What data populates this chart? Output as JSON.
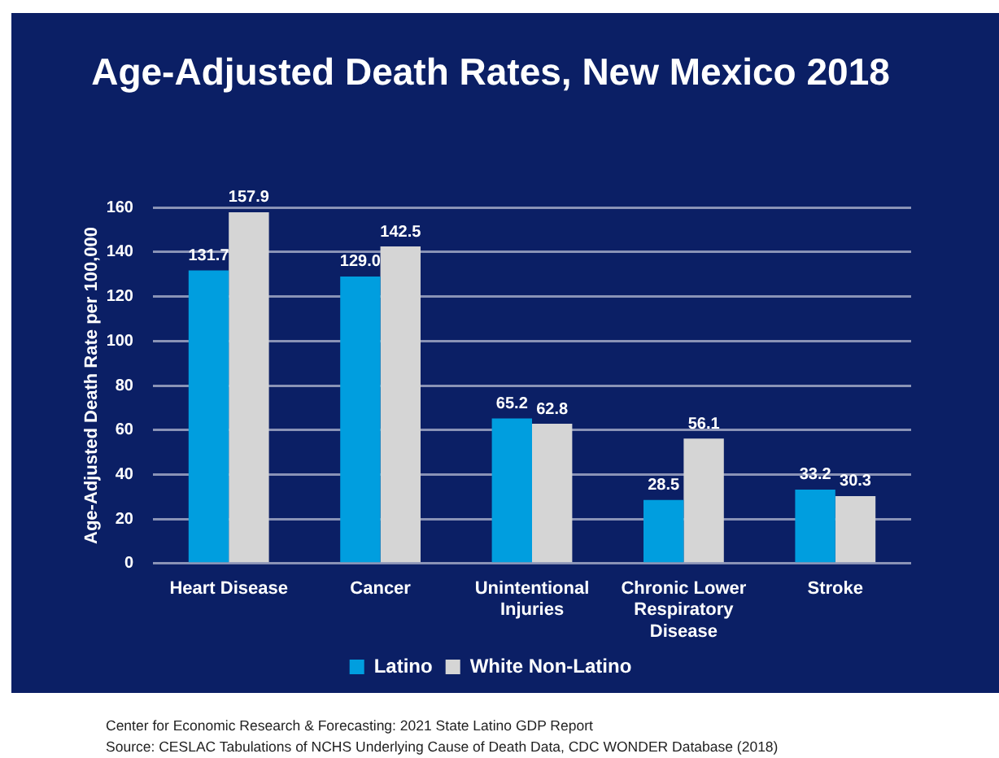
{
  "chart_data": {
    "type": "bar",
    "title": "Age-Adjusted Death Rates, New Mexico 2018",
    "ylabel": "Age-Adjusted Death Rate per 100,000",
    "categories": [
      "Heart Disease",
      "Cancer",
      "Unintentional Injuries",
      "Chronic Lower Respiratory Disease",
      "Stroke"
    ],
    "series": [
      {
        "name": "Latino",
        "color": "#009edf",
        "values": [
          131.7,
          129.0,
          65.2,
          28.5,
          33.2
        ],
        "value_labels": [
          "131.7",
          "129.0",
          "65.2",
          "28.5",
          "33.2"
        ]
      },
      {
        "name": "White Non-Latino",
        "color": "#d5d5d5",
        "values": [
          157.9,
          142.5,
          62.8,
          56.1,
          30.3
        ],
        "value_labels": [
          "157.9",
          "142.5",
          "62.8",
          "56.1",
          "30.3"
        ]
      }
    ],
    "ylim": [
      0,
      160
    ],
    "yticks": [
      0,
      20,
      40,
      60,
      80,
      100,
      120,
      140,
      160
    ],
    "grid": "y",
    "legend": "bottom",
    "annotations": [
      "Center for Economic Research & Forecasting: 2021 State Latino GDP Report",
      "Source: CESLAC Tabulations of NCHS Underlying Cause of Death Data, CDC WONDER Database (2018)"
    ]
  }
}
